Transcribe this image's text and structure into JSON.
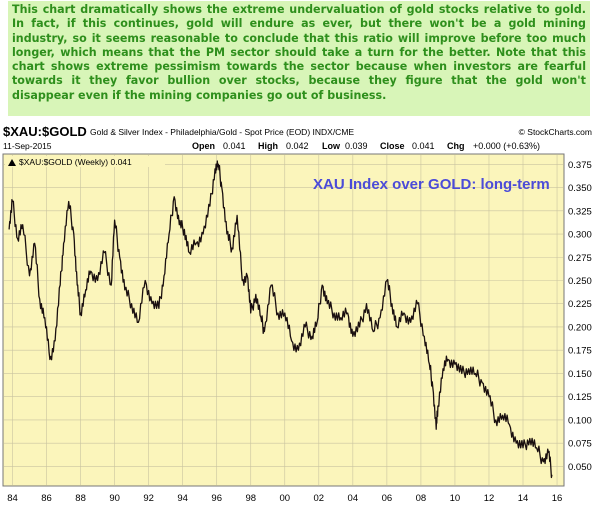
{
  "commentary": "This chart dramatically shows the extreme undervaluation of gold stocks relative to gold. In fact, if this continues, gold will endure as ever, but there won't be a gold mining industry, so it seems reasonable to conclude that this ratio will improve before too much longer, which means that the PM sector should take a turn for the better. Note that this chart shows extreme pessimism towards the sector because when investors are fearful towards it they favor bullion over stocks, because they figure that the gold won't disappear even if the mining companies go out of business.",
  "header": {
    "symbol": "$XAU:$GOLD",
    "description": "Gold & Silver Index - Philadelphia/Gold - Spot Price (EOD)  INDX/CME",
    "source": "© StockCharts.com",
    "date": "11-Sep-2015",
    "open_label": "Open",
    "open_value": "0.041",
    "high_label": "High",
    "high_value": "0.042",
    "low_label": "Low",
    "low_value": "0.039",
    "close_label": "Close",
    "close_value": "0.041",
    "chg_label": "Chg",
    "chg_value": "+0.000 (+0.63%)",
    "chg_icon": "up-triangle-icon",
    "legend_label": "$XAU:$GOLD (Weekly) 0.041"
  },
  "chart_data": {
    "type": "line",
    "title": "XAU Index over GOLD: long-term",
    "title_color": "#4b4bd8",
    "background_color": "#fbf5bb",
    "series_color": "#1a0f0f",
    "grid": true,
    "ylim": [
      0.03,
      0.385
    ],
    "y_ticks": [
      "0.375",
      "0.350",
      "0.325",
      "0.300",
      "0.275",
      "0.250",
      "0.225",
      "0.200",
      "0.175",
      "0.150",
      "0.125",
      "0.100",
      "0.075",
      "0.050"
    ],
    "x_ticks": [
      "84",
      "86",
      "88",
      "90",
      "92",
      "94",
      "96",
      "98",
      "00",
      "02",
      "04",
      "06",
      "08",
      "10",
      "12",
      "14",
      "16"
    ],
    "x_tick_years": [
      1984,
      1986,
      1988,
      1990,
      1992,
      1994,
      1996,
      1998,
      2000,
      2002,
      2004,
      2006,
      2008,
      2010,
      2012,
      2014,
      2016
    ],
    "xlim": [
      1983.5,
      2016.35
    ],
    "series": [
      {
        "x": [
          1983.8,
          1984.0,
          1984.3,
          1984.6,
          1985.0,
          1985.3,
          1985.6,
          1985.9,
          1986.2,
          1986.5,
          1986.8,
          1987.0,
          1987.3,
          1987.6,
          1987.8,
          1988.0,
          1988.3,
          1988.6,
          1989.0,
          1989.4,
          1989.8,
          1990.0,
          1990.3,
          1990.6,
          1991.0,
          1991.4,
          1991.8,
          1992.2,
          1992.6,
          1992.9,
          1993.2,
          1993.5,
          1993.8,
          1994.1,
          1994.4,
          1994.8,
          1995.2,
          1995.6,
          1995.9,
          1996.1,
          1996.3,
          1996.6,
          1996.9,
          1997.2,
          1997.5,
          1997.8,
          1998.0,
          1998.3,
          1998.6,
          1998.8,
          1999.2,
          1999.6,
          2000.0,
          2000.4,
          2000.8,
          2001.2,
          2001.6,
          2001.9,
          2002.2,
          2002.5,
          2002.9,
          2003.3,
          2003.7,
          2004.0,
          2004.4,
          2004.8,
          2005.2,
          2005.6,
          2006.0,
          2006.3,
          2006.6,
          2007.0,
          2007.4,
          2007.8,
          2008.2,
          2008.5,
          2008.7,
          2008.9,
          2009.0,
          2009.3,
          2009.6,
          2010.0,
          2010.4,
          2010.8,
          2011.2,
          2011.6,
          2012.0,
          2012.4,
          2012.8,
          2013.2,
          2013.6,
          2014.0,
          2014.4,
          2014.8,
          2015.2,
          2015.5,
          2015.7
        ],
        "y": [
          0.305,
          0.335,
          0.295,
          0.31,
          0.255,
          0.29,
          0.23,
          0.21,
          0.165,
          0.185,
          0.245,
          0.29,
          0.335,
          0.3,
          0.245,
          0.215,
          0.24,
          0.26,
          0.25,
          0.28,
          0.245,
          0.315,
          0.275,
          0.24,
          0.225,
          0.205,
          0.25,
          0.225,
          0.22,
          0.255,
          0.3,
          0.34,
          0.31,
          0.305,
          0.28,
          0.29,
          0.3,
          0.33,
          0.37,
          0.375,
          0.35,
          0.3,
          0.285,
          0.32,
          0.25,
          0.255,
          0.215,
          0.235,
          0.21,
          0.195,
          0.245,
          0.215,
          0.215,
          0.185,
          0.175,
          0.2,
          0.19,
          0.205,
          0.245,
          0.225,
          0.215,
          0.21,
          0.215,
          0.19,
          0.2,
          0.225,
          0.195,
          0.21,
          0.25,
          0.225,
          0.2,
          0.215,
          0.205,
          0.225,
          0.19,
          0.16,
          0.135,
          0.09,
          0.115,
          0.155,
          0.165,
          0.16,
          0.15,
          0.155,
          0.15,
          0.14,
          0.125,
          0.1,
          0.105,
          0.095,
          0.075,
          0.07,
          0.08,
          0.07,
          0.055,
          0.065,
          0.041
        ]
      }
    ]
  }
}
